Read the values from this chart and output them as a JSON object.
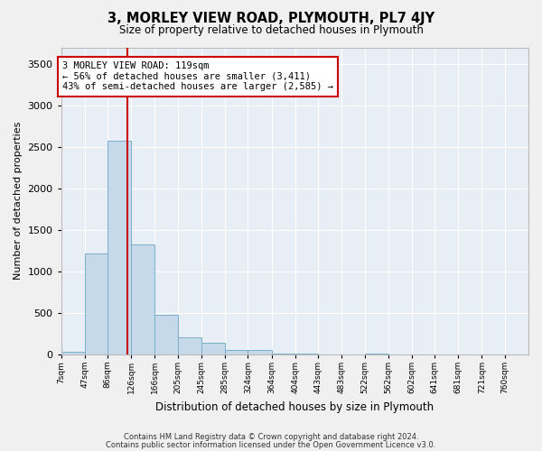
{
  "title": "3, MORLEY VIEW ROAD, PLYMOUTH, PL7 4JY",
  "subtitle": "Size of property relative to detached houses in Plymouth",
  "xlabel": "Distribution of detached houses by size in Plymouth",
  "ylabel": "Number of detached properties",
  "bar_color": "#c6d9ea",
  "bar_edge_color": "#7aafc8",
  "background_color": "#e8eef5",
  "grid_color": "#ffffff",
  "property_line_x": 119,
  "annotation_text": "3 MORLEY VIEW ROAD: 119sqm\n← 56% of detached houses are smaller (3,411)\n43% of semi-detached houses are larger (2,585) →",
  "annotation_box_color": "#ffffff",
  "annotation_box_edge": "#cc0000",
  "vline_color": "#cc0000",
  "bin_edges": [
    7,
    47,
    86,
    126,
    166,
    205,
    245,
    285,
    324,
    364,
    404,
    443,
    483,
    522,
    562,
    602,
    641,
    681,
    721,
    760,
    800
  ],
  "bar_heights": [
    30,
    1220,
    2570,
    1330,
    480,
    200,
    145,
    55,
    50,
    10,
    5,
    0,
    0,
    5,
    0,
    0,
    0,
    0,
    0,
    0
  ],
  "ylim": [
    0,
    3700
  ],
  "yticks": [
    0,
    500,
    1000,
    1500,
    2000,
    2500,
    3000,
    3500
  ],
  "footer_line1": "Contains HM Land Registry data © Crown copyright and database right 2024.",
  "footer_line2": "Contains public sector information licensed under the Open Government Licence v3.0.",
  "fig_facecolor": "#f0f0f0"
}
